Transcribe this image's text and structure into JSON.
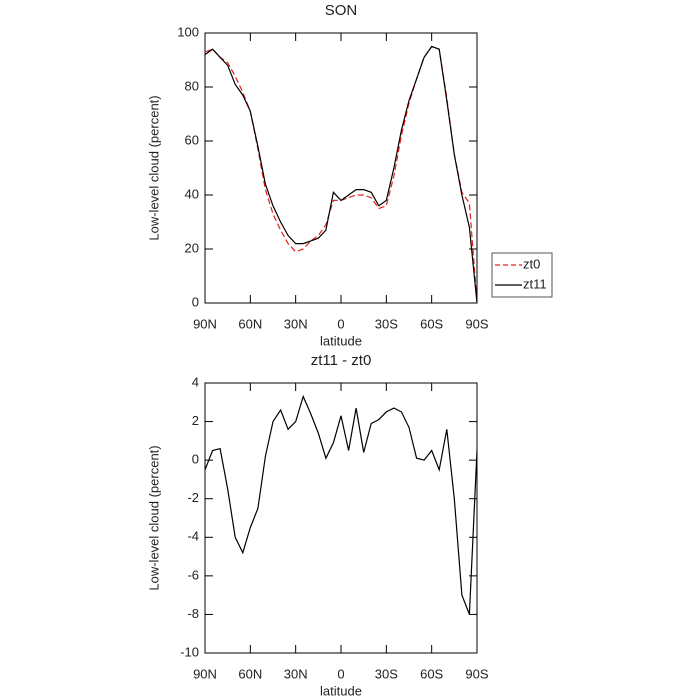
{
  "chart_data": [
    {
      "type": "line",
      "title": "SON",
      "xlabel": "latitude",
      "ylabel": "Low-level cloud (percent)",
      "x": [
        90,
        85,
        80,
        75,
        70,
        65,
        60,
        55,
        50,
        45,
        40,
        35,
        30,
        25,
        20,
        15,
        10,
        5,
        0,
        -5,
        -10,
        -15,
        -20,
        -25,
        -30,
        -35,
        -40,
        -45,
        -50,
        -55,
        -60,
        -65,
        -70,
        -75,
        -80,
        -85,
        -90
      ],
      "series": [
        {
          "name": "zt0",
          "color": "#e8201c",
          "dash": true,
          "values": [
            93,
            94,
            91,
            89,
            84,
            78,
            71,
            57,
            42,
            33,
            27,
            22,
            19,
            20,
            23,
            25,
            29,
            38,
            38,
            39,
            40,
            40,
            39,
            35,
            36,
            47,
            62,
            74,
            83,
            91,
            95,
            94,
            76,
            55,
            41,
            37,
            0
          ]
        },
        {
          "name": "zt11",
          "color": "#000000",
          "dash": false,
          "values": [
            92,
            94,
            91,
            88,
            81,
            77,
            71,
            58,
            44,
            36,
            30,
            25,
            22,
            22,
            23,
            24,
            27,
            41,
            38,
            40,
            42,
            42,
            41,
            36,
            38,
            50,
            64,
            75,
            83,
            91,
            95,
            94,
            75,
            55,
            40,
            28,
            0
          ]
        }
      ],
      "xlim": [
        90,
        -90
      ],
      "xticks": [
        {
          "value": 90,
          "label": "90N"
        },
        {
          "value": 60,
          "label": "60N"
        },
        {
          "value": 30,
          "label": "30N"
        },
        0,
        {
          "value": -30,
          "label": "30S"
        },
        {
          "value": -60,
          "label": "60S"
        },
        {
          "value": -90,
          "label": "90S"
        }
      ],
      "ylim": [
        0,
        100
      ],
      "yticks": [
        0,
        20,
        40,
        60,
        80,
        100
      ],
      "legend": "right"
    },
    {
      "type": "line",
      "title": "zt11 - zt0",
      "xlabel": "latitude",
      "ylabel": "Low-level cloud (percent)",
      "x": [
        90,
        85,
        80,
        75,
        70,
        65,
        60,
        55,
        50,
        45,
        40,
        35,
        30,
        25,
        20,
        15,
        10,
        5,
        0,
        -5,
        -10,
        -15,
        -20,
        -25,
        -30,
        -35,
        -40,
        -45,
        -50,
        -55,
        -60,
        -65,
        -70,
        -75,
        -80,
        -85,
        -90
      ],
      "series": [
        {
          "color": "#000000",
          "dash": false,
          "values": [
            -0.5,
            0.5,
            0.6,
            -1.5,
            -4,
            -4.8,
            -3.5,
            -2.5,
            0.2,
            2.0,
            2.6,
            1.6,
            2.0,
            3.3,
            2.4,
            1.4,
            0.1,
            0.9,
            2.3,
            0.5,
            2.7,
            0.4,
            1.9,
            2.1,
            2.5,
            2.7,
            2.5,
            1.7,
            0.1,
            0.0,
            0.5,
            -0.5,
            1.6,
            -2,
            -7,
            -8,
            0.5
          ]
        }
      ],
      "xlim": [
        90,
        -90
      ],
      "xticks": [
        {
          "value": 90,
          "label": "90N"
        },
        {
          "value": 60,
          "label": "60N"
        },
        {
          "value": 30,
          "label": "30N"
        },
        0,
        {
          "value": -30,
          "label": "30S"
        },
        {
          "value": -60,
          "label": "60S"
        },
        {
          "value": -90,
          "label": "90S"
        }
      ],
      "ylim": [
        -10,
        4
      ],
      "yticks": [
        -10,
        -8,
        -6,
        -4,
        -2,
        0,
        2,
        4
      ]
    }
  ]
}
